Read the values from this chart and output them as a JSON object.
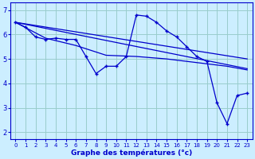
{
  "xlabel": "Graphe des températures (°c)",
  "bg_color": "#cceeff",
  "grid_color": "#99cccc",
  "line_color": "#0000cc",
  "xlim": [
    -0.5,
    23.5
  ],
  "ylim": [
    1.7,
    7.3
  ],
  "xticks": [
    0,
    1,
    2,
    3,
    4,
    5,
    6,
    7,
    8,
    9,
    10,
    11,
    12,
    13,
    14,
    15,
    16,
    17,
    18,
    19,
    20,
    21,
    22,
    23
  ],
  "yticks": [
    2,
    3,
    4,
    5,
    6,
    7
  ],
  "lines": [
    {
      "x": [
        0,
        1,
        2,
        3,
        4,
        5,
        6,
        7,
        8,
        9,
        10,
        11,
        12,
        13,
        14,
        15,
        16,
        17,
        18,
        19,
        20,
        21,
        22,
        23
      ],
      "y": [
        6.5,
        6.3,
        5.9,
        5.8,
        5.85,
        5.8,
        5.8,
        5.1,
        4.4,
        4.7,
        4.7,
        5.1,
        6.8,
        6.75,
        6.5,
        6.15,
        5.9,
        5.5,
        5.1,
        4.9,
        3.2,
        2.35,
        3.5,
        3.6
      ],
      "markers": true
    },
    {
      "x": [
        0,
        23
      ],
      "y": [
        6.5,
        5.0
      ],
      "markers": false
    },
    {
      "x": [
        0,
        23
      ],
      "y": [
        6.5,
        4.6
      ],
      "markers": false
    },
    {
      "x": [
        0,
        3,
        6,
        9,
        12,
        15,
        18,
        21,
        23
      ],
      "y": [
        6.5,
        5.85,
        5.55,
        5.15,
        5.1,
        5.0,
        4.85,
        4.7,
        4.55
      ],
      "markers": false
    }
  ],
  "xtick_fontsize": 5.0,
  "ytick_fontsize": 6.0,
  "xlabel_fontsize": 6.5
}
